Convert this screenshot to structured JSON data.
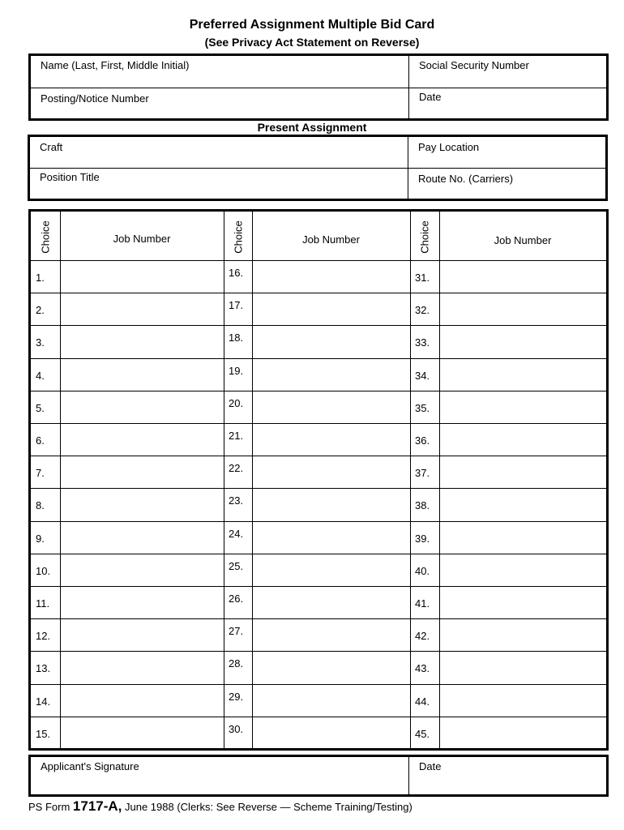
{
  "header": {
    "title": "Preferred Assignment Multiple Bid Card",
    "subtitle": "(See Privacy Act Statement on Reverse)"
  },
  "applicant": {
    "name_label": "Name (Last, First, Middle Initial)",
    "ssn_label": "Social Security Number",
    "posting_label": "Posting/Notice Number",
    "date_label": "Date"
  },
  "present_assignment": {
    "heading": "Present Assignment",
    "craft_label": "Craft",
    "pay_location_label": "Pay Location",
    "position_title_label": "Position Title",
    "route_label": "Route No. (Carriers)"
  },
  "choices_table": {
    "choice_header": "Choice",
    "job_number_header": "Job Number",
    "columns": [
      [
        "1.",
        "2.",
        "3.",
        "4.",
        "5.",
        "6.",
        "7.",
        "8.",
        "9.",
        "10.",
        "11.",
        "12.",
        "13.",
        "14.",
        "15."
      ],
      [
        "16.",
        "17.",
        "18.",
        "19.",
        "20.",
        "21.",
        "22.",
        "23.",
        "24.",
        "25.",
        "26.",
        "27.",
        "28.",
        "29.",
        "30."
      ],
      [
        "31.",
        "32.",
        "33.",
        "34.",
        "35.",
        "36.",
        "37.",
        "38.",
        "39.",
        "40.",
        "41.",
        "42.",
        "43.",
        "44.",
        "45."
      ]
    ]
  },
  "signature": {
    "signature_label": "Applicant's Signature",
    "date_label": "Date"
  },
  "footer": {
    "prefix": "PS Form ",
    "form_number": "1717-A,",
    "suffix": " June 1988  (Clerks: See Reverse — Scheme Training/Testing)"
  }
}
